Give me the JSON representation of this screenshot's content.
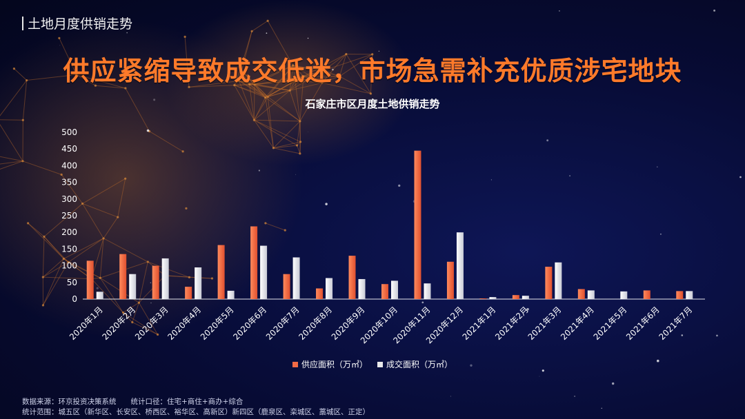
{
  "section_label": "土地月度供销走势",
  "headline": "供应紧缩导致成交低迷，市场急需补充优质涉宅地块",
  "footer": {
    "line1": "数据来源：环京投资决策系统　　统计口径：住宅+商住+商办+综合",
    "line2": "统计范围：城五区（新华区、长安区、桥西区、裕华区、高新区）新四区（鹿泉区、栾城区、藁城区、正定）"
  },
  "colors": {
    "headline": "#ff7a2a",
    "supply": "#f26a45",
    "deal": "#e8e8ea",
    "background": "#070b34"
  },
  "chart_data": {
    "type": "bar",
    "title": "石家庄市区月度土地供销走势",
    "xlabel": "",
    "ylabel": "",
    "ylim": [
      0,
      500
    ],
    "yticks": [
      0,
      50,
      100,
      150,
      200,
      250,
      300,
      350,
      400,
      450,
      500
    ],
    "grid": false,
    "legend_position": "bottom",
    "categories": [
      "2020年1月",
      "2020年2月",
      "2020年3月",
      "2020年4月",
      "2020年5月",
      "2020年6月",
      "2020年7月",
      "2020年8月",
      "2020年9月",
      "2020年10月",
      "2020年11月",
      "2020年12月",
      "2021年1月",
      "2021年2月",
      "2021年3月",
      "2021年4月",
      "2021年5月",
      "2021年6月",
      "2021年7月"
    ],
    "series": [
      {
        "name": "供应面积（万㎡）",
        "values": [
          115,
          135,
          100,
          37,
          162,
          218,
          75,
          32,
          130,
          45,
          445,
          112,
          2,
          12,
          97,
          30,
          0,
          26,
          24
        ]
      },
      {
        "name": "成交面积（万㎡）",
        "values": [
          22,
          75,
          122,
          95,
          25,
          160,
          125,
          63,
          60,
          55,
          47,
          200,
          6,
          10,
          110,
          26,
          23,
          0,
          24
        ]
      }
    ]
  }
}
